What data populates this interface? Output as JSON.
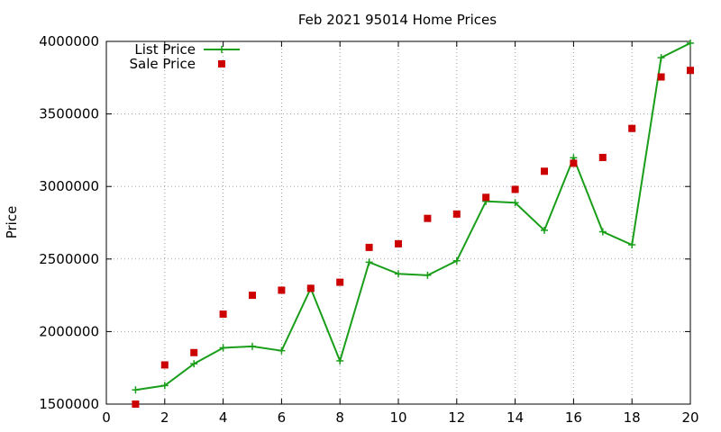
{
  "chart_data": {
    "type": "line",
    "title": "Feb 2021 95014 Home Prices",
    "xlabel": "",
    "ylabel": "Price",
    "xlim": [
      0,
      20
    ],
    "ylim": [
      1500000,
      4000000
    ],
    "xticks": [
      0,
      2,
      4,
      6,
      8,
      10,
      12,
      14,
      16,
      18,
      20
    ],
    "yticks": [
      1500000,
      2000000,
      2500000,
      3000000,
      3500000,
      4000000
    ],
    "grid": true,
    "legend": "top-left",
    "series": [
      {
        "name": "List Price",
        "style": "line+cross",
        "color": "#1a9e1a",
        "x": [
          1,
          2,
          3,
          4,
          5,
          6,
          7,
          8,
          9,
          10,
          11,
          12,
          13,
          14,
          15,
          16,
          17,
          18,
          19,
          20
        ],
        "y": [
          1598000,
          1628000,
          1778000,
          1888000,
          1898000,
          1868000,
          2298000,
          1798000,
          2478000,
          2398000,
          2388000,
          2488000,
          2898000,
          2888000,
          2698000,
          3198000,
          2688000,
          2598000,
          3888000,
          3988000
        ]
      },
      {
        "name": "Sale Price",
        "style": "square",
        "color": "#cc0000",
        "x": [
          1,
          2,
          3,
          4,
          5,
          6,
          7,
          8,
          9,
          10,
          11,
          12,
          13,
          14,
          15,
          16,
          17,
          18,
          19,
          20
        ],
        "y": [
          1500000,
          1770000,
          1855000,
          2120000,
          2250000,
          2285000,
          2298000,
          2340000,
          2580000,
          2605000,
          2780000,
          2810000,
          2925000,
          2980000,
          3105000,
          3160000,
          3200000,
          3400000,
          3755000,
          3800000
        ]
      }
    ]
  }
}
